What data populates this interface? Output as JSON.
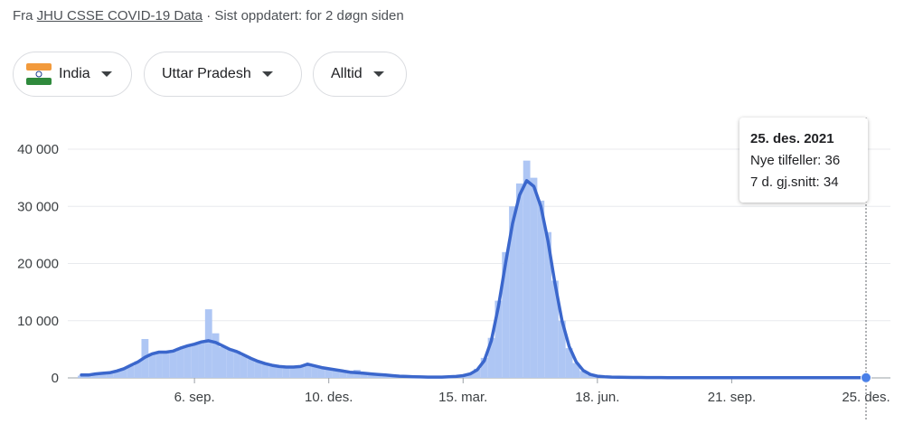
{
  "header": {
    "prefix": "Fra",
    "source_link": "JHU CSSE COVID-19 Data",
    "updated": "· Sist oppdatert: for 2 døgn siden"
  },
  "filters": {
    "country": "India",
    "region": "Uttar Pradesh",
    "period": "Alltid"
  },
  "tooltip": {
    "date": "25. des. 2021",
    "labels": [
      "Nye tilfeller:",
      "7 d. gj.snitt:"
    ]
  },
  "chart_data": {
    "type": "bar",
    "categories": [
      null,
      null,
      null,
      null,
      null,
      null,
      null,
      null,
      null,
      null,
      null,
      null,
      null,
      null,
      null,
      null,
      "6. sep.",
      null,
      null,
      null,
      null,
      null,
      null,
      null,
      null,
      null,
      null,
      null,
      null,
      null,
      null,
      null,
      null,
      null,
      null,
      "10. des.",
      null,
      null,
      null,
      null,
      null,
      null,
      null,
      null,
      null,
      null,
      null,
      null,
      null,
      null,
      null,
      null,
      null,
      null,
      "15. mar.",
      null,
      null,
      null,
      null,
      null,
      null,
      null,
      null,
      null,
      null,
      null,
      null,
      null,
      null,
      null,
      null,
      null,
      null,
      "18. jun.",
      null,
      null,
      null,
      null,
      null,
      null,
      null,
      null,
      null,
      null,
      null,
      null,
      null,
      null,
      null,
      null,
      null,
      null,
      "21. sep.",
      null,
      null,
      null,
      null,
      null,
      null,
      null,
      null,
      null,
      null,
      null,
      null,
      null,
      null,
      null,
      null,
      null,
      null,
      "25. des."
    ],
    "series": [
      {
        "type": "bar",
        "color": "#aec6f4",
        "values": [
          400,
          600,
          650,
          900,
          850,
          1300,
          1700,
          2100,
          2900,
          6800,
          4300,
          4400,
          4700,
          4600,
          5300,
          5500,
          6000,
          6200,
          12000,
          7800,
          5400,
          5100,
          4700,
          3900,
          3300,
          2800,
          2400,
          2300,
          1900,
          1800,
          2000,
          2100,
          2300,
          2000,
          1700,
          1500,
          1500,
          1200,
          1000,
          1400,
          800,
          700,
          600,
          500,
          400,
          300,
          250,
          200,
          170,
          150,
          140,
          160,
          190,
          260,
          450,
          800,
          1600,
          3500,
          7000,
          13500,
          22000,
          30000,
          34000,
          38000,
          35000,
          31000,
          25500,
          17000,
          10000,
          5200,
          2600,
          1200,
          550,
          280,
          190,
          140,
          110,
          90,
          80,
          70,
          70,
          60,
          60,
          55,
          50,
          50,
          45,
          45,
          40,
          40,
          40,
          38,
          36,
          35,
          34,
          34,
          33,
          32,
          32,
          31,
          30,
          30,
          30,
          30,
          30,
          32,
          33,
          34,
          35,
          35,
          35,
          36
        ]
      },
      {
        "type": "line",
        "color": "#3b67cc",
        "values": [
          500,
          500,
          700,
          800,
          900,
          1200,
          1600,
          2200,
          2800,
          3600,
          4200,
          4500,
          4500,
          4700,
          5200,
          5600,
          5900,
          6300,
          6500,
          6200,
          5600,
          5000,
          4600,
          4000,
          3400,
          2900,
          2500,
          2200,
          2000,
          1900,
          1900,
          2000,
          2400,
          2100,
          1800,
          1600,
          1400,
          1200,
          1000,
          900,
          800,
          700,
          600,
          500,
          400,
          300,
          250,
          200,
          180,
          150,
          150,
          150,
          200,
          250,
          400,
          700,
          1400,
          3000,
          6500,
          12500,
          20000,
          27000,
          32000,
          34500,
          33500,
          30000,
          24000,
          16500,
          10000,
          5500,
          2800,
          1300,
          600,
          300,
          200,
          150,
          120,
          100,
          85,
          75,
          70,
          65,
          60,
          55,
          52,
          50,
          48,
          45,
          43,
          42,
          40,
          38,
          37,
          36,
          35,
          34,
          33,
          32,
          32,
          31,
          31,
          30,
          30,
          30,
          30,
          31,
          32,
          33,
          33,
          34,
          34,
          34
        ]
      }
    ],
    "ylim": [
      0,
      40000
    ],
    "yticks": [
      0,
      {
        "value": 10000,
        "label": "10 000"
      },
      {
        "value": 20000,
        "label": "20 000"
      },
      {
        "value": 30000,
        "label": "30 000"
      },
      {
        "value": 40000,
        "label": "40 000"
      }
    ],
    "grid": true
  }
}
